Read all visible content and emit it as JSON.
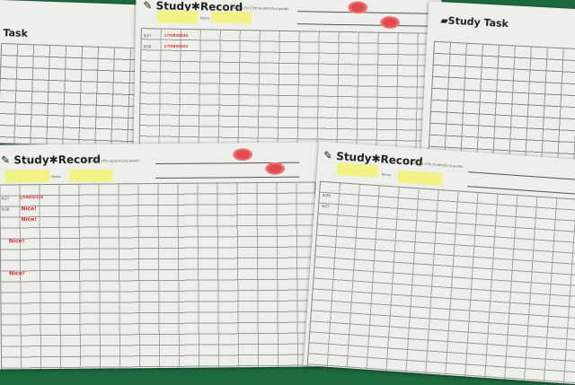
{
  "sheets": {
    "task_left": {
      "title": "Task"
    },
    "record_top": {
      "title": "Study✱Record",
      "subtitle": "for the SH 27th student(2nd grade)",
      "name_label": "Name",
      "dates": [
        "9/27",
        "9/28"
      ],
      "stamps": [
        "1/Y0830320",
        "1/Y0830320"
      ]
    },
    "task_right": {
      "title": "Study Task"
    },
    "record_bottom_left": {
      "title": "Study✱Record",
      "subtitle": "for the SH 27th student(2nd grade)",
      "name_label": "Name",
      "dates": [
        "9/27",
        "9/28"
      ],
      "stamps": [
        "1/Y0830320",
        "Nice!",
        "Nice!",
        "Nice!",
        "Nice!"
      ]
    },
    "record_bottom_right": {
      "title": "Study✱Record",
      "subtitle": "for the SH 27th student(2nd grade)",
      "name_label": "Name",
      "dates": [
        "9/26",
        "9/27"
      ]
    }
  },
  "colors": {
    "background": "#1d6a3f",
    "paper": "#eeeeec",
    "highlighter": "#f3f27a",
    "ink_red": "#d33333"
  }
}
